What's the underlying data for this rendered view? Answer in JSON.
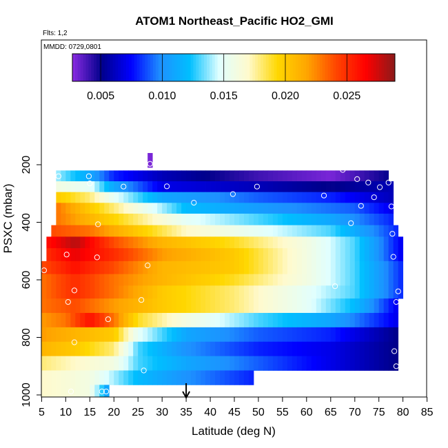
{
  "chart_data": {
    "type": "heatmap",
    "title": "ATOM1 Northeast_Pacific HO2_GMI",
    "subtitle": "Flts: 1,2",
    "annotation": "MMDD: 0729,0801",
    "xlabel": "Latitude (deg N)",
    "ylabel": "PSXC (mbar)",
    "xlim": [
      5,
      85
    ],
    "ylim": [
      1000,
      0
    ],
    "x_ticks": [
      "5",
      "10",
      "15",
      "20",
      "25",
      "30",
      "35",
      "40",
      "45",
      "50",
      "55",
      "60",
      "65",
      "70",
      "75",
      "80",
      "85"
    ],
    "y_ticks": [
      "200",
      "400",
      "600",
      "800",
      "1000"
    ],
    "colorbar": {
      "range": [
        0.0027,
        0.0289
      ],
      "ticks": [
        "0.005",
        "0.010",
        "0.015",
        "0.020",
        "0.025"
      ],
      "tick_values": [
        0.005,
        0.01,
        0.015,
        0.02,
        0.025
      ],
      "colors": [
        "#8a2be2",
        "#00008b",
        "#0000ff",
        "#1e90ff",
        "#00bfff",
        "#e0ffff",
        "#fffacd",
        "#ffd700",
        "#ffa500",
        "#ff4500",
        "#ff0000",
        "#8b1a1a"
      ]
    },
    "marker": {
      "x": 35,
      "label": "arrow"
    },
    "rows": [
      {
        "p": 200,
        "x0": 27,
        "x1": 28,
        "profile": [
          [
            27,
            0.003
          ],
          [
            28,
            0.003
          ]
        ]
      },
      {
        "p": 240,
        "x0": 8,
        "x1": 77,
        "profile": [
          [
            8,
            0.014
          ],
          [
            15,
            0.011
          ],
          [
            20,
            0.008
          ],
          [
            30,
            0.006
          ],
          [
            50,
            0.004
          ],
          [
            65,
            0.003
          ],
          [
            77,
            0.005
          ]
        ]
      },
      {
        "p": 275,
        "x0": 8,
        "x1": 78,
        "profile": [
          [
            8,
            0.016
          ],
          [
            15,
            0.015
          ],
          [
            20,
            0.011
          ],
          [
            30,
            0.007
          ],
          [
            50,
            0.006
          ],
          [
            65,
            0.005
          ],
          [
            78,
            0.006
          ]
        ]
      },
      {
        "p": 315,
        "x0": 8,
        "x1": 78,
        "profile": [
          [
            8,
            0.02
          ],
          [
            15,
            0.018
          ],
          [
            20,
            0.015
          ],
          [
            30,
            0.011
          ],
          [
            50,
            0.009
          ],
          [
            65,
            0.008
          ],
          [
            78,
            0.006
          ]
        ]
      },
      {
        "p": 350,
        "x0": 8,
        "x1": 78,
        "profile": [
          [
            8,
            0.023
          ],
          [
            15,
            0.02
          ],
          [
            25,
            0.016
          ],
          [
            35,
            0.012
          ],
          [
            55,
            0.01
          ],
          [
            70,
            0.009
          ],
          [
            78,
            0.007
          ]
        ]
      },
      {
        "p": 390,
        "x0": 8,
        "x1": 78,
        "profile": [
          [
            8,
            0.023
          ],
          [
            15,
            0.021
          ],
          [
            25,
            0.018
          ],
          [
            35,
            0.015
          ],
          [
            50,
            0.013
          ],
          [
            65,
            0.011
          ],
          [
            78,
            0.008
          ]
        ]
      },
      {
        "p": 430,
        "x0": 7,
        "x1": 79,
        "profile": [
          [
            7,
            0.024
          ],
          [
            15,
            0.023
          ],
          [
            25,
            0.02
          ],
          [
            35,
            0.017
          ],
          [
            50,
            0.015
          ],
          [
            65,
            0.013
          ],
          [
            79,
            0.008
          ]
        ]
      },
      {
        "p": 470,
        "x0": 6,
        "x1": 80,
        "profile": [
          [
            6,
            0.026
          ],
          [
            12,
            0.028
          ],
          [
            20,
            0.024
          ],
          [
            30,
            0.021
          ],
          [
            45,
            0.019
          ],
          [
            60,
            0.016
          ],
          [
            70,
            0.013
          ],
          [
            80,
            0.007
          ]
        ]
      },
      {
        "p": 510,
        "x0": 6,
        "x1": 80,
        "profile": [
          [
            6,
            0.025
          ],
          [
            12,
            0.027
          ],
          [
            20,
            0.025
          ],
          [
            30,
            0.022
          ],
          [
            45,
            0.02
          ],
          [
            60,
            0.016
          ],
          [
            70,
            0.013
          ],
          [
            80,
            0.007
          ]
        ]
      },
      {
        "p": 560,
        "x0": 5,
        "x1": 80,
        "profile": [
          [
            5,
            0.024
          ],
          [
            12,
            0.026
          ],
          [
            20,
            0.024
          ],
          [
            30,
            0.021
          ],
          [
            45,
            0.02
          ],
          [
            60,
            0.016
          ],
          [
            70,
            0.013
          ],
          [
            80,
            0.008
          ]
        ]
      },
      {
        "p": 600,
        "x0": 5,
        "x1": 80,
        "profile": [
          [
            5,
            0.023
          ],
          [
            12,
            0.025
          ],
          [
            20,
            0.023
          ],
          [
            30,
            0.021
          ],
          [
            45,
            0.019
          ],
          [
            60,
            0.016
          ],
          [
            70,
            0.013
          ],
          [
            80,
            0.008
          ]
        ]
      },
      {
        "p": 640,
        "x0": 5,
        "x1": 80,
        "profile": [
          [
            5,
            0.023
          ],
          [
            12,
            0.025
          ],
          [
            20,
            0.023
          ],
          [
            30,
            0.02
          ],
          [
            45,
            0.018
          ],
          [
            60,
            0.015
          ],
          [
            70,
            0.013
          ],
          [
            80,
            0.008
          ]
        ]
      },
      {
        "p": 690,
        "x0": 5,
        "x1": 79,
        "profile": [
          [
            5,
            0.023
          ],
          [
            12,
            0.024
          ],
          [
            20,
            0.022
          ],
          [
            30,
            0.02
          ],
          [
            45,
            0.018
          ],
          [
            60,
            0.015
          ],
          [
            70,
            0.012
          ],
          [
            79,
            0.007
          ]
        ]
      },
      {
        "p": 740,
        "x0": 5,
        "x1": 79,
        "profile": [
          [
            5,
            0.022
          ],
          [
            10,
            0.023
          ],
          [
            15,
            0.026
          ],
          [
            20,
            0.023
          ],
          [
            25,
            0.019
          ],
          [
            35,
            0.016
          ],
          [
            50,
            0.013
          ],
          [
            65,
            0.011
          ],
          [
            79,
            0.007
          ]
        ]
      },
      {
        "p": 790,
        "x0": 5,
        "x1": 79,
        "profile": [
          [
            5,
            0.022
          ],
          [
            12,
            0.021
          ],
          [
            20,
            0.02
          ],
          [
            25,
            0.015
          ],
          [
            35,
            0.011
          ],
          [
            50,
            0.009
          ],
          [
            65,
            0.008
          ],
          [
            79,
            0.005
          ]
        ]
      },
      {
        "p": 840,
        "x0": 5,
        "x1": 79,
        "profile": [
          [
            5,
            0.021
          ],
          [
            12,
            0.02
          ],
          [
            20,
            0.018
          ],
          [
            25,
            0.013
          ],
          [
            35,
            0.01
          ],
          [
            50,
            0.008
          ],
          [
            65,
            0.007
          ],
          [
            79,
            0.005
          ]
        ]
      },
      {
        "p": 890,
        "x0": 5,
        "x1": 79,
        "profile": [
          [
            5,
            0.018
          ],
          [
            12,
            0.017
          ],
          [
            20,
            0.016
          ],
          [
            25,
            0.013
          ],
          [
            35,
            0.011
          ],
          [
            50,
            0.009
          ],
          [
            65,
            0.007
          ],
          [
            79,
            0.005
          ]
        ]
      },
      {
        "p": 940,
        "x0": 5,
        "x1": 49,
        "profile": [
          [
            5,
            0.017
          ],
          [
            15,
            0.016
          ],
          [
            25,
            0.012
          ],
          [
            35,
            0.01
          ],
          [
            49,
            0.008
          ]
        ]
      },
      {
        "p": 990,
        "x0": 5,
        "x1": 19,
        "profile": [
          [
            5,
            0.017
          ],
          [
            15,
            0.016
          ],
          [
            18,
            0.012
          ],
          [
            19,
            0.01
          ]
        ]
      }
    ],
    "points": [
      [
        27.5,
        197
      ],
      [
        8.5,
        240
      ],
      [
        14.8,
        240
      ],
      [
        67.5,
        218
      ],
      [
        70.5,
        250
      ],
      [
        72.8,
        262
      ],
      [
        75.2,
        278
      ],
      [
        77.0,
        262
      ],
      [
        15.0,
        265
      ],
      [
        22.0,
        276
      ],
      [
        31.0,
        275
      ],
      [
        44.7,
        302
      ],
      [
        49.7,
        276
      ],
      [
        63.6,
        307
      ],
      [
        74.0,
        313
      ],
      [
        71.3,
        343
      ],
      [
        77.6,
        345
      ],
      [
        36.6,
        332
      ],
      [
        16.7,
        407
      ],
      [
        69.2,
        403
      ],
      [
        77.8,
        440
      ],
      [
        10.2,
        512
      ],
      [
        16.5,
        522
      ],
      [
        27.0,
        550
      ],
      [
        5.5,
        567
      ],
      [
        78.0,
        520
      ],
      [
        65.9,
        622
      ],
      [
        79.0,
        640
      ],
      [
        11.8,
        637
      ],
      [
        10.5,
        677
      ],
      [
        25.7,
        670
      ],
      [
        78.6,
        677
      ],
      [
        18.8,
        737
      ],
      [
        11.8,
        817
      ],
      [
        78.2,
        848
      ],
      [
        26.2,
        915
      ],
      [
        78.6,
        900
      ],
      [
        11.1,
        988
      ],
      [
        17.5,
        988
      ],
      [
        18.4,
        988
      ]
    ]
  }
}
